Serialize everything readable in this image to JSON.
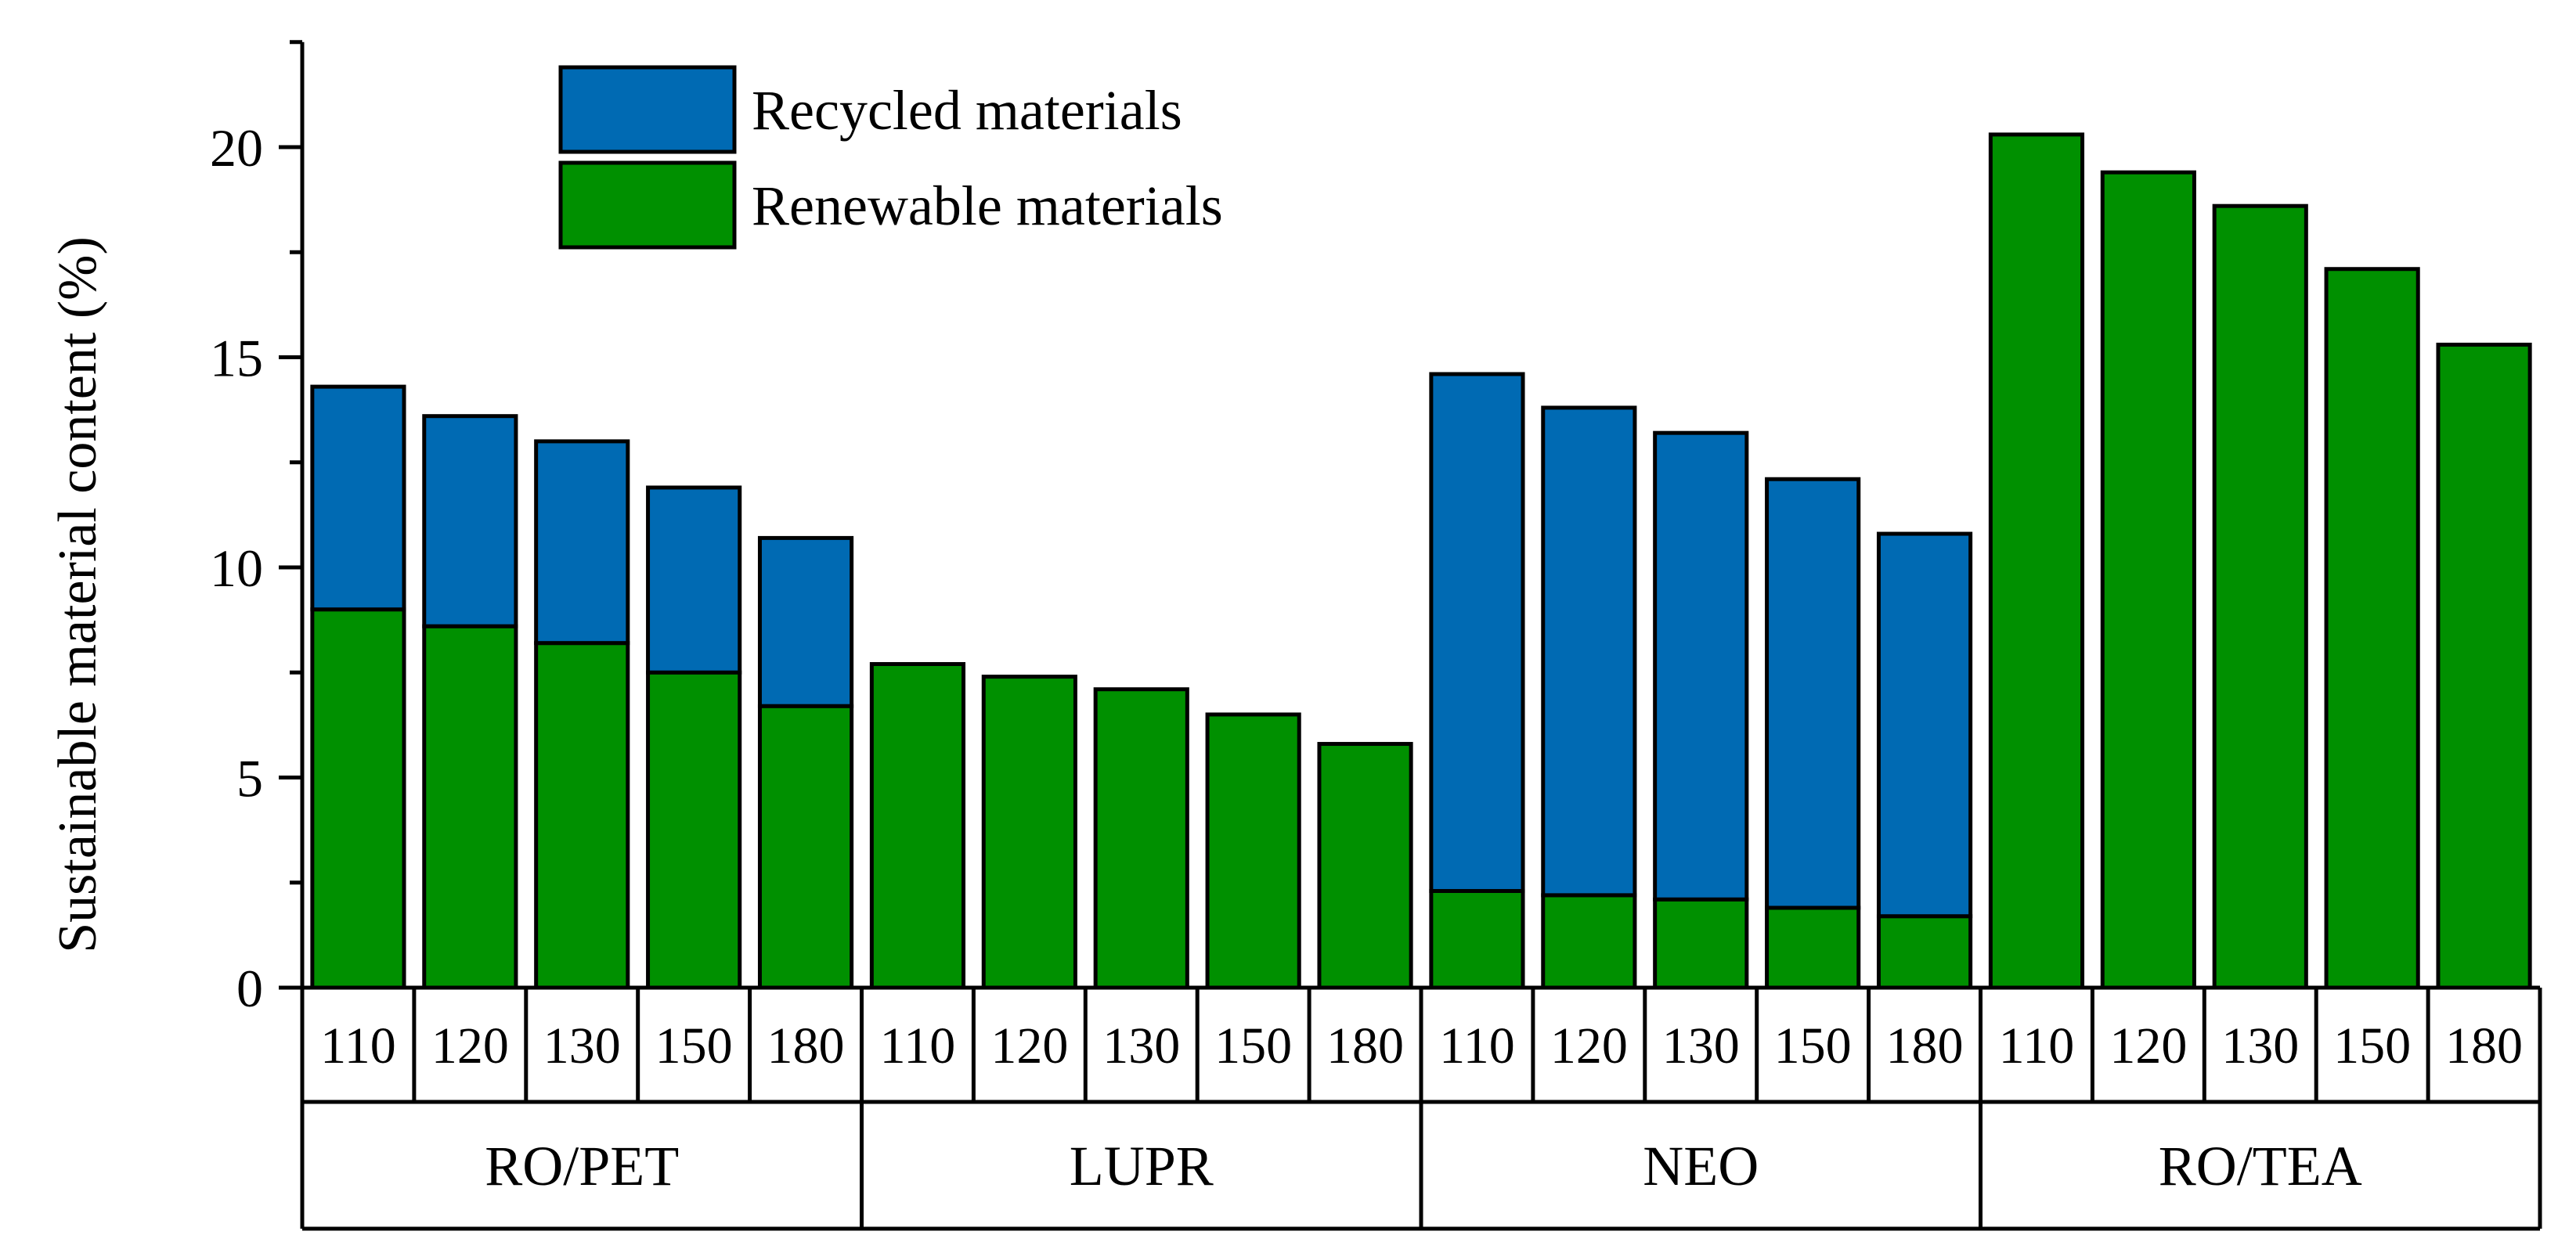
{
  "chart_data": {
    "type": "bar",
    "stacked": true,
    "title": "",
    "xlabel": "",
    "ylabel": "Sustainable material content (%)",
    "ylim": [
      0,
      22.5
    ],
    "yticks": [
      0,
      5,
      10,
      15,
      20
    ],
    "groups": [
      "RO/PET",
      "LUPR",
      "NEO",
      "RO/TEA"
    ],
    "categories": [
      "110",
      "120",
      "130",
      "150",
      "180",
      "110",
      "120",
      "130",
      "150",
      "180",
      "110",
      "120",
      "130",
      "150",
      "180",
      "110",
      "120",
      "130",
      "150",
      "180"
    ],
    "series": [
      {
        "name": "Renewable materials",
        "color": "#009000",
        "values": [
          9.0,
          8.6,
          8.2,
          7.5,
          6.7,
          7.7,
          7.4,
          7.1,
          6.5,
          5.8,
          2.3,
          2.2,
          2.1,
          1.9,
          1.7,
          20.3,
          19.4,
          18.6,
          17.1,
          15.3
        ]
      },
      {
        "name": "Recycled materials",
        "color": "#006AB3",
        "values": [
          5.3,
          5.0,
          4.8,
          4.4,
          4.0,
          0,
          0,
          0,
          0,
          0,
          12.3,
          11.6,
          11.1,
          10.2,
          9.1,
          0,
          0,
          0,
          0,
          0
        ]
      }
    ],
    "legend": {
      "position": "top-left",
      "order": [
        "Recycled materials",
        "Renewable materials"
      ]
    },
    "grid": false
  }
}
